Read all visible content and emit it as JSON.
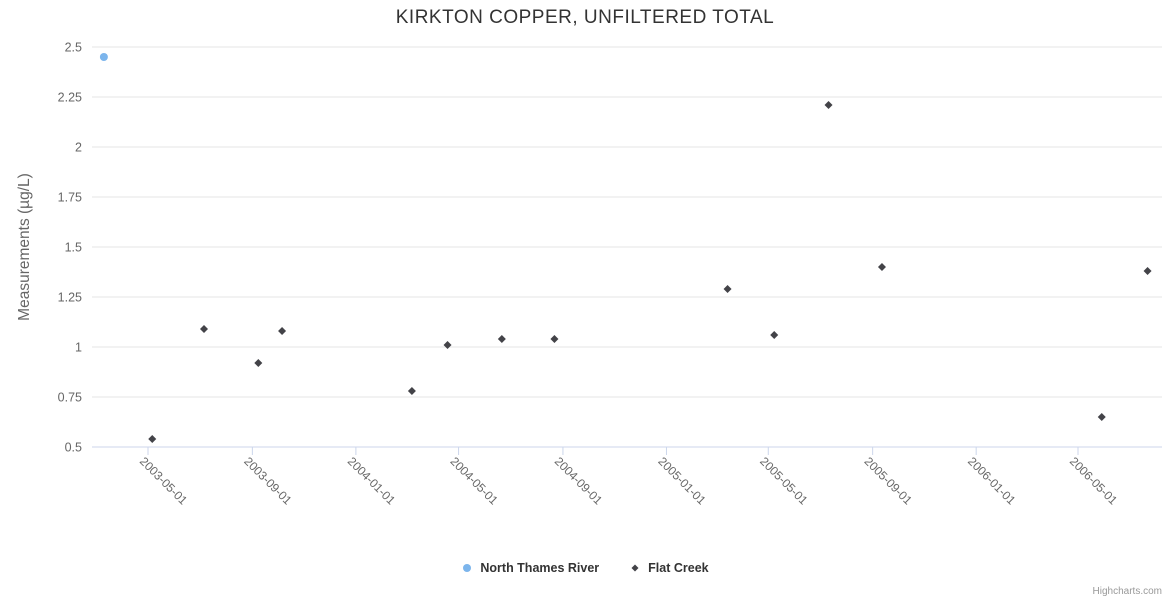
{
  "chart_data": {
    "type": "scatter",
    "title": "KIRKTON COPPER, UNFILTERED TOTAL",
    "xlabel": "",
    "ylabel": "Measurements (µg/L)",
    "ylim": [
      0.5,
      2.5
    ],
    "y_ticks": [
      0.5,
      0.75,
      1,
      1.25,
      1.5,
      1.75,
      2,
      2.25,
      2.5
    ],
    "x_ticks": [
      "2003-05-01",
      "2003-09-01",
      "2004-01-01",
      "2004-05-01",
      "2004-09-01",
      "2005-01-01",
      "2005-05-01",
      "2005-09-01",
      "2006-01-01",
      "2006-05-01"
    ],
    "x_range": [
      "2003-02-24",
      "2006-08-08"
    ],
    "grid": true,
    "legend_position": "bottom-center",
    "colors": {
      "grid_line": "#e6e6e6",
      "axis_line": "#ccd6eb",
      "tick_label": "#666666",
      "title_text": "#333333",
      "legend_text": "#333333",
      "credits_text": "#999999"
    },
    "series": [
      {
        "name": "North Thames River",
        "color": "#7cb5ec",
        "marker": "circle",
        "points": [
          {
            "x": "2003-03-10",
            "y": 2.45
          }
        ]
      },
      {
        "name": "Flat Creek",
        "color": "#434348",
        "marker": "diamond",
        "points": [
          {
            "x": "2003-05-06",
            "y": 0.54
          },
          {
            "x": "2003-07-06",
            "y": 1.09
          },
          {
            "x": "2003-09-08",
            "y": 0.92
          },
          {
            "x": "2003-10-06",
            "y": 1.08
          },
          {
            "x": "2004-03-07",
            "y": 0.78
          },
          {
            "x": "2004-04-18",
            "y": 1.01
          },
          {
            "x": "2004-06-21",
            "y": 1.04
          },
          {
            "x": "2004-08-22",
            "y": 1.04
          },
          {
            "x": "2005-03-14",
            "y": 1.29
          },
          {
            "x": "2005-05-08",
            "y": 1.06
          },
          {
            "x": "2005-07-11",
            "y": 2.21
          },
          {
            "x": "2005-09-12",
            "y": 1.4
          },
          {
            "x": "2006-05-29",
            "y": 0.65
          },
          {
            "x": "2006-07-22",
            "y": 1.38
          }
        ]
      }
    ],
    "credits": "Highcharts.com"
  }
}
